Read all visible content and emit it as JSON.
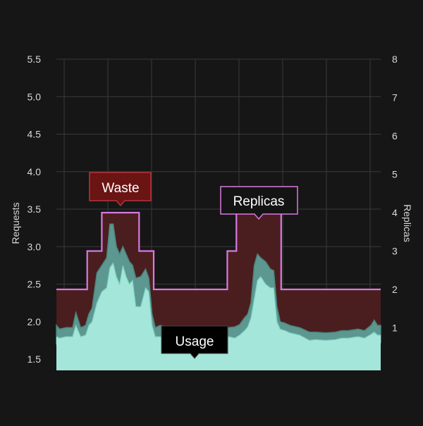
{
  "chart_data": {
    "type": "area",
    "title": "",
    "x_axis": {
      "label": "",
      "tick_count": 8,
      "tick_labels": []
    },
    "y_left": {
      "label": "Requests",
      "ylim": [
        1.35,
        5.5
      ],
      "ticks": [
        "1.5",
        "2.0",
        "2.5",
        "3.0",
        "3.5",
        "4.0",
        "4.5",
        "5.0",
        "5.5"
      ]
    },
    "y_right": {
      "label": "Replicas",
      "ylim": [
        0,
        8
      ],
      "ticks": [
        "1",
        "2",
        "3",
        "4",
        "5",
        "6",
        "7",
        "8"
      ]
    },
    "grid": true,
    "annotations": {
      "waste": "Waste",
      "replicas": "Replicas",
      "usage": "Usage"
    },
    "replicas_series": {
      "name": "Replicas",
      "steps": [
        {
          "x_start": 0,
          "x_end": 0.095,
          "replicas": 2
        },
        {
          "x_start": 0.095,
          "x_end": 0.14,
          "replicas": 3
        },
        {
          "x_start": 0.14,
          "x_end": 0.255,
          "replicas": 4
        },
        {
          "x_start": 0.255,
          "x_end": 0.3,
          "replicas": 3
        },
        {
          "x_start": 0.3,
          "x_end": 0.527,
          "replicas": 2
        },
        {
          "x_start": 0.527,
          "x_end": 0.555,
          "replicas": 3
        },
        {
          "x_start": 0.555,
          "x_end": 0.693,
          "replicas": 4
        },
        {
          "x_start": 0.693,
          "x_end": 1,
          "replicas": 2
        }
      ]
    },
    "usage_series": {
      "name": "Usage",
      "x": [
        0,
        0.01,
        0.03,
        0.05,
        0.06,
        0.075,
        0.09,
        0.1,
        0.11,
        0.125,
        0.14,
        0.155,
        0.165,
        0.175,
        0.185,
        0.195,
        0.205,
        0.215,
        0.225,
        0.235,
        0.245,
        0.26,
        0.275,
        0.285,
        0.295,
        0.305,
        0.32,
        0.35,
        0.4,
        0.45,
        0.5,
        0.53,
        0.55,
        0.565,
        0.58,
        0.59,
        0.6,
        0.61,
        0.62,
        0.63,
        0.645,
        0.66,
        0.67,
        0.68,
        0.69,
        0.705,
        0.72,
        0.75,
        0.78,
        0.8,
        0.83,
        0.86,
        0.88,
        0.9,
        0.93,
        0.95,
        0.97,
        0.98,
        0.99,
        1
      ],
      "mid": [
        1.8,
        1.78,
        1.8,
        1.8,
        1.95,
        1.8,
        1.82,
        1.95,
        2.0,
        2.25,
        2.4,
        2.45,
        2.72,
        2.78,
        2.6,
        2.5,
        2.75,
        2.6,
        2.5,
        2.55,
        2.2,
        2.2,
        2.45,
        2.4,
        1.95,
        1.8,
        1.8,
        1.78,
        1.78,
        1.78,
        1.8,
        1.8,
        1.78,
        1.82,
        1.88,
        1.93,
        2.05,
        2.3,
        2.55,
        2.6,
        2.5,
        2.45,
        2.45,
        2.0,
        1.9,
        1.88,
        1.85,
        1.82,
        1.75,
        1.76,
        1.75,
        1.76,
        1.78,
        1.78,
        1.8,
        1.78,
        1.83,
        1.86,
        1.82,
        1.82
      ],
      "band_upper": [
        1.95,
        1.9,
        1.92,
        1.92,
        2.12,
        1.92,
        1.95,
        2.1,
        2.18,
        2.65,
        2.75,
        2.85,
        3.3,
        3.3,
        3.0,
        2.9,
        3.0,
        2.9,
        2.8,
        2.75,
        2.58,
        2.6,
        2.7,
        2.58,
        2.1,
        1.92,
        1.95,
        1.92,
        1.9,
        1.9,
        1.92,
        1.92,
        1.93,
        1.96,
        2.05,
        2.1,
        2.25,
        2.75,
        2.9,
        2.85,
        2.8,
        2.7,
        2.68,
        2.2,
        2.0,
        1.98,
        1.95,
        1.92,
        1.86,
        1.86,
        1.85,
        1.86,
        1.88,
        1.88,
        1.9,
        1.88,
        1.95,
        2.02,
        1.95,
        1.95
      ],
      "band_lower": [
        1.7,
        1.66,
        1.68,
        1.68,
        1.8,
        1.7,
        1.72,
        1.82,
        1.86,
        2.05,
        2.15,
        2.2,
        2.3,
        2.35,
        2.2,
        2.15,
        2.3,
        2.2,
        2.15,
        2.2,
        1.95,
        1.95,
        2.15,
        2.1,
        1.75,
        1.68,
        1.68,
        1.66,
        1.66,
        1.66,
        1.68,
        1.68,
        1.68,
        1.7,
        1.74,
        1.8,
        1.85,
        2.05,
        2.2,
        2.3,
        2.2,
        2.15,
        2.15,
        1.82,
        1.76,
        1.75,
        1.72,
        1.68,
        1.66,
        1.66,
        1.66,
        1.66,
        1.68,
        1.68,
        1.7,
        1.68,
        1.72,
        1.75,
        1.72,
        1.72
      ]
    },
    "colors": {
      "background": "#161616",
      "grid": "#3a3a3a",
      "axis_text": "#d8d8d8",
      "waste_fill": "#4a1e1f",
      "replicas_line": "#d77ae0",
      "usage_fill": "#a4e6da",
      "usage_band": "#5c9790",
      "usage_band_edge": "#4a857e",
      "waste_box_fill": "#6a1414",
      "waste_box_stroke": "#b8343a",
      "replicas_box_fill": "#141414",
      "replicas_box_stroke": "#d77ae0",
      "usage_box_fill": "#000000",
      "usage_box_stroke": "#444444",
      "label_text": "#ffffff"
    }
  }
}
